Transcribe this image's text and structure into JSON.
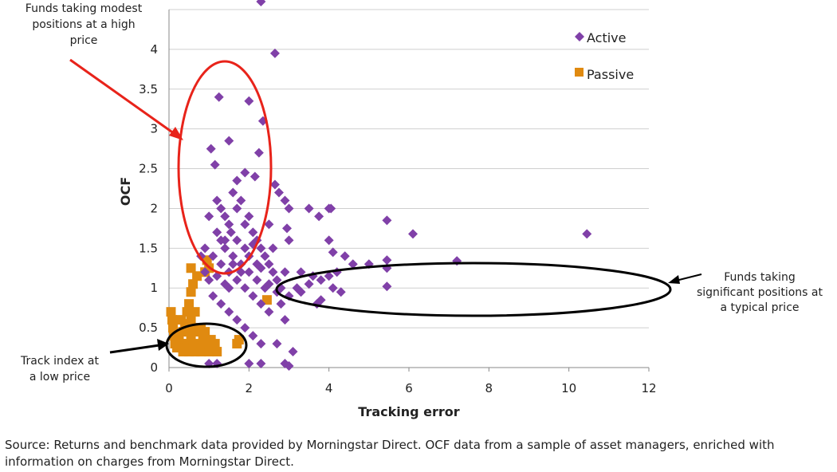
{
  "chart_data": {
    "type": "scatter",
    "xlabel": "Tracking error",
    "ylabel": "OCF",
    "xlim": [
      0,
      12
    ],
    "ylim": [
      0,
      4.5
    ],
    "x_ticks": [
      "0",
      "2",
      "4",
      "6",
      "8",
      "10",
      "12"
    ],
    "y_ticks": [
      "0",
      "0.5",
      "1",
      "1.5",
      "2",
      "2.5",
      "3",
      "3.5",
      "4"
    ],
    "grid": "horizontal",
    "legend_position": "top-right",
    "colors": {
      "Active": "#8040a8",
      "Passive": "#e08a10"
    },
    "series": [
      {
        "name": "Active",
        "marker": "diamond",
        "points": [
          [
            2.3,
            4.6
          ],
          [
            2.65,
            3.95
          ],
          [
            1.25,
            3.4
          ],
          [
            2.0,
            3.35
          ],
          [
            2.35,
            3.1
          ],
          [
            1.5,
            2.85
          ],
          [
            1.05,
            2.75
          ],
          [
            2.25,
            2.7
          ],
          [
            1.15,
            2.55
          ],
          [
            1.9,
            2.45
          ],
          [
            2.15,
            2.4
          ],
          [
            2.65,
            2.3
          ],
          [
            2.75,
            2.2
          ],
          [
            2.9,
            2.1
          ],
          [
            3.0,
            2.0
          ],
          [
            3.5,
            2.0
          ],
          [
            4.0,
            2.0
          ],
          [
            4.05,
            2.0
          ],
          [
            3.75,
            1.9
          ],
          [
            5.45,
            1.85
          ],
          [
            6.1,
            1.68
          ],
          [
            10.45,
            1.68
          ],
          [
            2.95,
            1.75
          ],
          [
            3.0,
            1.6
          ],
          [
            4.0,
            1.6
          ],
          [
            2.5,
            1.8
          ],
          [
            4.1,
            1.45
          ],
          [
            4.4,
            1.4
          ],
          [
            4.6,
            1.3
          ],
          [
            5.0,
            1.3
          ],
          [
            5.45,
            1.35
          ],
          [
            7.2,
            1.34
          ],
          [
            5.45,
            1.25
          ],
          [
            3.3,
            1.2
          ],
          [
            3.6,
            1.15
          ],
          [
            3.8,
            1.1
          ],
          [
            4.0,
            1.15
          ],
          [
            4.2,
            1.2
          ],
          [
            3.5,
            1.05
          ],
          [
            3.2,
            1.0
          ],
          [
            4.1,
            1.0
          ],
          [
            5.45,
            1.02
          ],
          [
            3.3,
            0.95
          ],
          [
            4.3,
            0.95
          ],
          [
            3.0,
            0.9
          ],
          [
            3.8,
            0.85
          ],
          [
            2.8,
            0.8
          ],
          [
            3.7,
            0.8
          ],
          [
            1.5,
            1.0
          ],
          [
            1.0,
            1.1
          ],
          [
            0.9,
            1.5
          ],
          [
            0.8,
            1.4
          ],
          [
            1.0,
            1.9
          ],
          [
            1.2,
            2.1
          ],
          [
            1.3,
            2.0
          ],
          [
            1.6,
            2.2
          ],
          [
            1.7,
            2.35
          ],
          [
            1.8,
            2.1
          ],
          [
            1.4,
            1.9
          ],
          [
            1.55,
            1.7
          ],
          [
            1.7,
            1.6
          ],
          [
            1.9,
            1.8
          ],
          [
            2.0,
            1.9
          ],
          [
            2.1,
            1.7
          ],
          [
            2.2,
            1.6
          ],
          [
            2.3,
            1.5
          ],
          [
            2.4,
            1.4
          ],
          [
            2.5,
            1.3
          ],
          [
            2.6,
            1.2
          ],
          [
            2.7,
            1.1
          ],
          [
            2.8,
            1.0
          ],
          [
            2.9,
            1.2
          ],
          [
            2.6,
            1.5
          ],
          [
            1.3,
            1.3
          ],
          [
            1.5,
            1.2
          ],
          [
            1.7,
            1.1
          ],
          [
            1.9,
            1.0
          ],
          [
            2.1,
            0.9
          ],
          [
            2.3,
            0.8
          ],
          [
            2.5,
            0.7
          ],
          [
            1.1,
            0.9
          ],
          [
            1.3,
            0.8
          ],
          [
            1.5,
            0.7
          ],
          [
            1.7,
            0.6
          ],
          [
            1.9,
            0.5
          ],
          [
            2.1,
            0.4
          ],
          [
            2.3,
            0.3
          ],
          [
            2.7,
            0.3
          ],
          [
            2.9,
            0.6
          ],
          [
            3.1,
            0.2
          ],
          [
            2.9,
            0.05
          ],
          [
            3.0,
            0.02
          ],
          [
            2.3,
            0.05
          ],
          [
            2.0,
            0.05
          ],
          [
            1.2,
            0.05
          ],
          [
            1.0,
            0.05
          ],
          [
            1.4,
            1.6
          ],
          [
            1.6,
            1.4
          ],
          [
            1.8,
            1.3
          ],
          [
            2.0,
            1.2
          ],
          [
            2.2,
            1.1
          ],
          [
            2.4,
            1.0
          ],
          [
            1.2,
            1.7
          ],
          [
            1.4,
            1.5
          ],
          [
            1.6,
            1.3
          ],
          [
            1.8,
            1.2
          ],
          [
            2.0,
            1.4
          ],
          [
            2.2,
            1.3
          ],
          [
            0.9,
            1.2
          ],
          [
            1.1,
            1.4
          ],
          [
            1.3,
            1.6
          ],
          [
            1.5,
            1.8
          ],
          [
            1.7,
            2.0
          ],
          [
            1.9,
            1.5
          ],
          [
            2.1,
            1.55
          ],
          [
            2.3,
            1.25
          ],
          [
            2.5,
            1.05
          ],
          [
            2.7,
            0.95
          ],
          [
            1.2,
            1.15
          ],
          [
            1.4,
            1.05
          ]
        ]
      },
      {
        "name": "Passive",
        "marker": "square",
        "points": [
          [
            0.05,
            0.7
          ],
          [
            0.08,
            0.6
          ],
          [
            0.1,
            0.5
          ],
          [
            0.12,
            0.4
          ],
          [
            0.15,
            0.3
          ],
          [
            0.2,
            0.25
          ],
          [
            0.25,
            0.35
          ],
          [
            0.3,
            0.3
          ],
          [
            0.35,
            0.2
          ],
          [
            0.4,
            0.25
          ],
          [
            0.45,
            0.3
          ],
          [
            0.5,
            0.2
          ],
          [
            0.55,
            0.35
          ],
          [
            0.6,
            0.25
          ],
          [
            0.65,
            0.2
          ],
          [
            0.7,
            0.3
          ],
          [
            0.75,
            0.25
          ],
          [
            0.8,
            0.2
          ],
          [
            0.85,
            0.35
          ],
          [
            0.9,
            0.25
          ],
          [
            0.95,
            0.3
          ],
          [
            1.0,
            0.2
          ],
          [
            1.05,
            0.35
          ],
          [
            1.1,
            0.25
          ],
          [
            1.15,
            0.3
          ],
          [
            1.2,
            0.2
          ],
          [
            0.5,
            0.45
          ],
          [
            0.6,
            0.5
          ],
          [
            0.7,
            0.45
          ],
          [
            0.8,
            0.5
          ],
          [
            0.9,
            0.45
          ],
          [
            0.55,
            0.6
          ],
          [
            0.45,
            0.7
          ],
          [
            0.5,
            0.8
          ],
          [
            0.55,
            0.95
          ],
          [
            0.6,
            1.05
          ],
          [
            0.7,
            1.15
          ],
          [
            0.9,
            1.2
          ],
          [
            1.0,
            1.25
          ],
          [
            0.55,
            1.25
          ],
          [
            0.95,
            1.35
          ],
          [
            0.4,
            0.55
          ],
          [
            0.35,
            0.45
          ],
          [
            1.7,
            0.3
          ],
          [
            1.75,
            0.35
          ],
          [
            2.45,
            0.85
          ],
          [
            0.3,
            0.6
          ],
          [
            0.65,
            0.7
          ]
        ]
      }
    ],
    "annotations": [
      {
        "lines": [
          "Funds taking modest",
          "positions at a high",
          "price"
        ]
      },
      {
        "lines": [
          "Funds taking",
          "significant positions at",
          "a typical price"
        ]
      },
      {
        "lines": [
          "Track index at",
          "a low price"
        ]
      }
    ]
  },
  "source_note": "Source: Returns and benchmark data provided by Morningstar Direct. OCF data from a sample of asset managers, enriched with information on charges from Morningstar Direct."
}
